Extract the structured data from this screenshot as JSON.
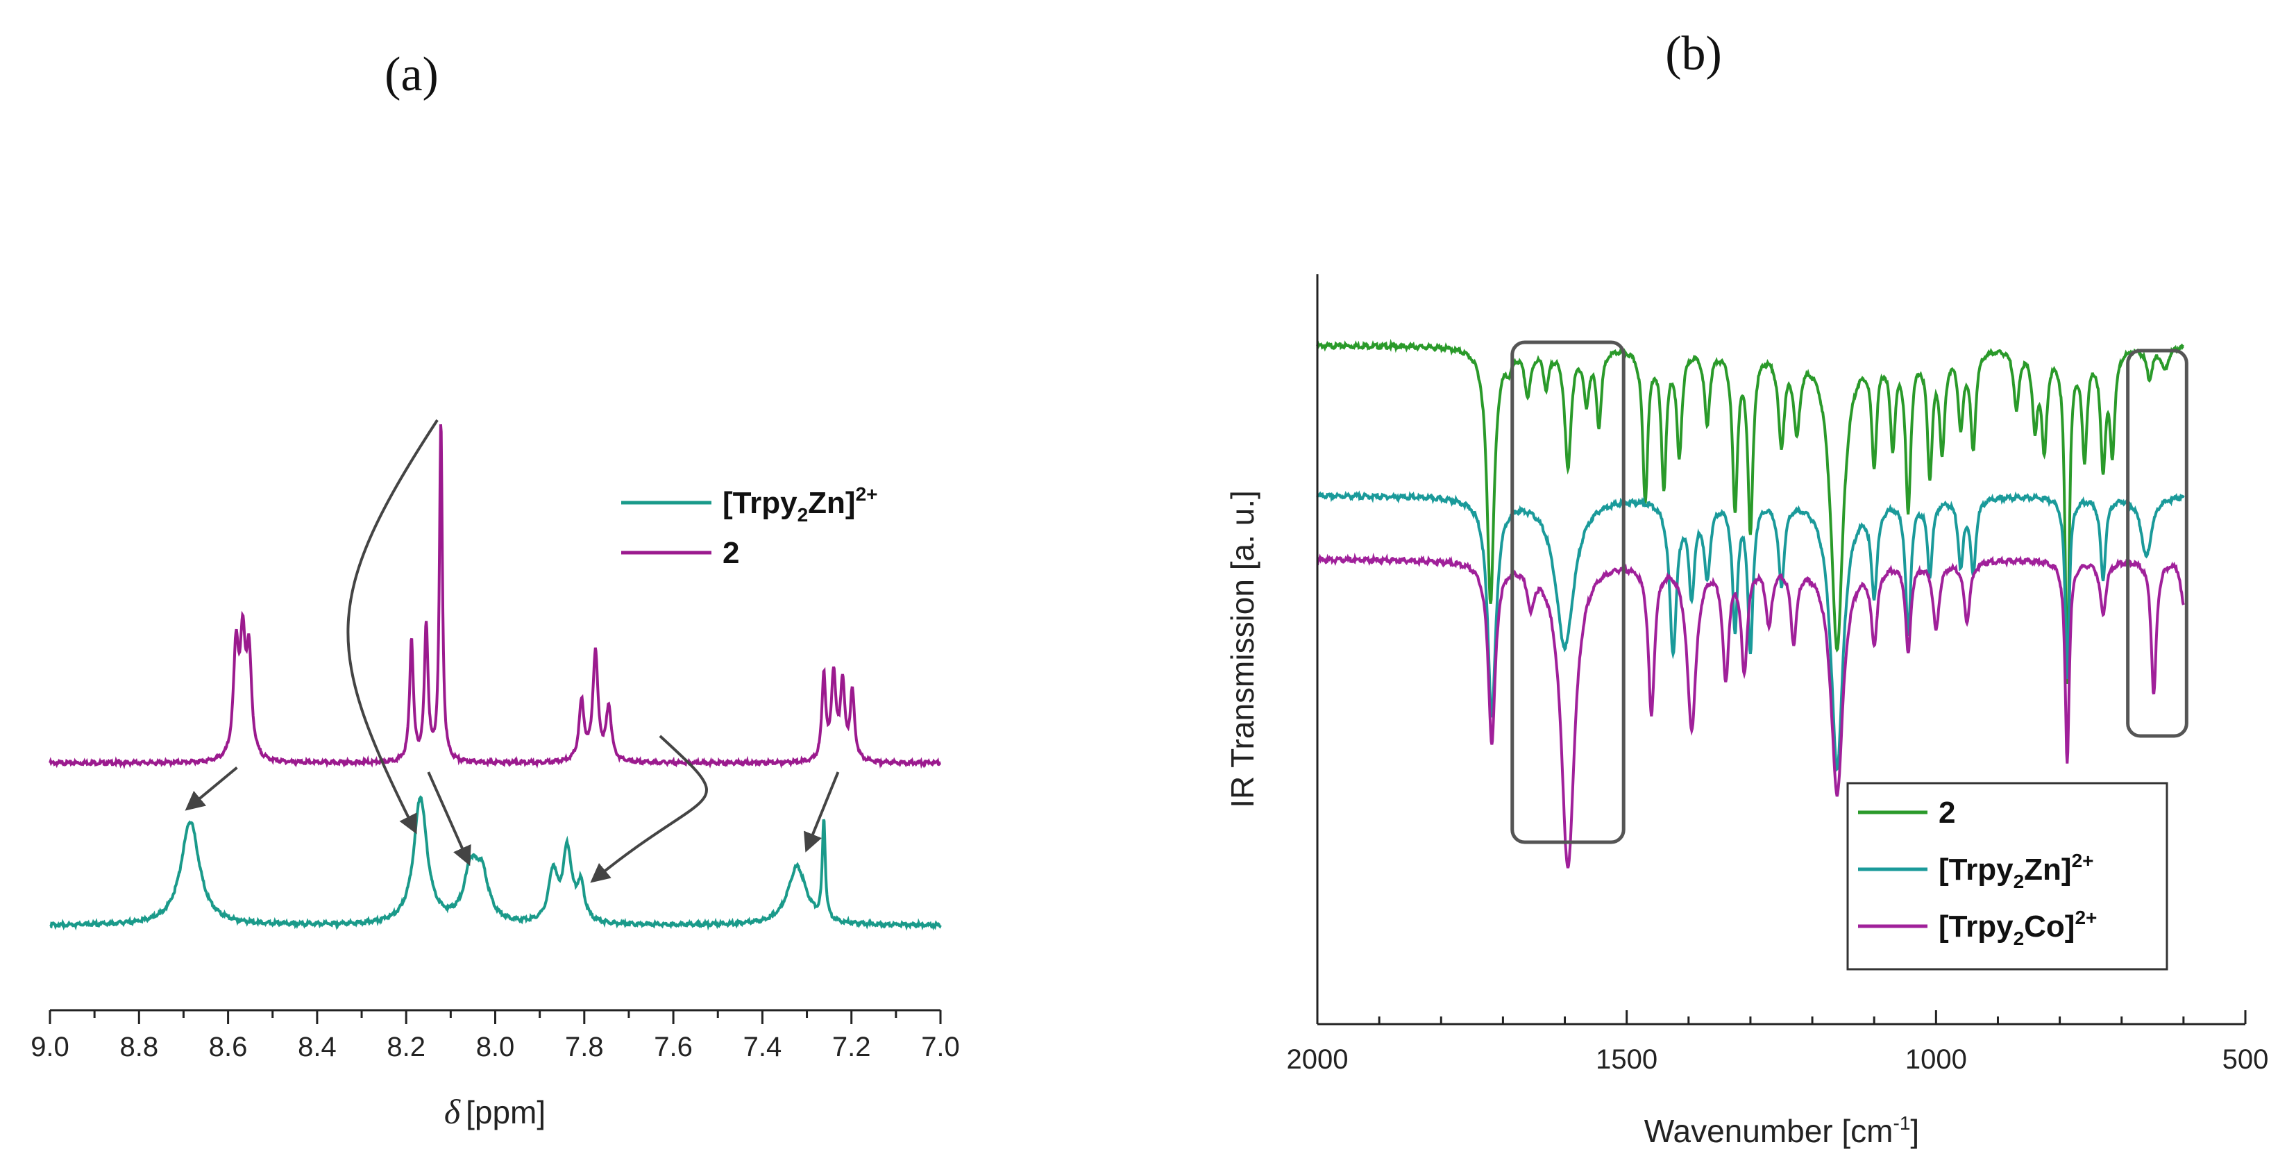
{
  "chart_data": [
    {
      "id": "nmr",
      "type": "line",
      "panel_label": "(a)",
      "xlabel_symbol": "δ",
      "xlabel_unit": "[ppm]",
      "xlim": [
        9.0,
        7.0
      ],
      "x_ticks": [
        "9.0",
        "8.8",
        "8.6",
        "8.4",
        "8.2",
        "8.0",
        "7.8",
        "7.6",
        "7.4",
        "7.2",
        "7.0"
      ],
      "legend": [
        {
          "label_main": "[Trpy",
          "label_sub": "2",
          "label_after": "Zn]",
          "label_sup": "2+",
          "color": "#1a9a8a"
        },
        {
          "label_main": "2",
          "label_sub": "",
          "label_after": "",
          "label_sup": "",
          "color": "#9b1a8e"
        }
      ],
      "series": [
        {
          "name": "2",
          "color": "#9b1a8e",
          "offset": 0.36,
          "peaks": [
            {
              "x": 8.582,
              "h": 0.24,
              "w": 0.007
            },
            {
              "x": 8.567,
              "h": 0.24,
              "w": 0.007
            },
            {
              "x": 8.553,
              "h": 0.22,
              "w": 0.007
            },
            {
              "x": 8.188,
              "h": 0.27,
              "w": 0.005
            },
            {
              "x": 8.155,
              "h": 0.3,
              "w": 0.005
            },
            {
              "x": 8.122,
              "h": 0.75,
              "w": 0.004
            },
            {
              "x": 7.806,
              "h": 0.13,
              "w": 0.007
            },
            {
              "x": 7.775,
              "h": 0.24,
              "w": 0.007
            },
            {
              "x": 7.745,
              "h": 0.12,
              "w": 0.007
            },
            {
              "x": 7.262,
              "h": 0.19,
              "w": 0.005
            },
            {
              "x": 7.24,
              "h": 0.19,
              "w": 0.006
            },
            {
              "x": 7.22,
              "h": 0.17,
              "w": 0.006
            },
            {
              "x": 7.198,
              "h": 0.15,
              "w": 0.006
            }
          ]
        },
        {
          "name": "[Trpy2Zn]2+",
          "color": "#1a9a8a",
          "offset": 0.0,
          "peaks": [
            {
              "x": 8.685,
              "h": 0.23,
              "w": 0.025
            },
            {
              "x": 8.168,
              "h": 0.28,
              "w": 0.018
            },
            {
              "x": 8.055,
              "h": 0.11,
              "w": 0.018
            },
            {
              "x": 8.03,
              "h": 0.1,
              "w": 0.018
            },
            {
              "x": 7.87,
              "h": 0.11,
              "w": 0.012
            },
            {
              "x": 7.838,
              "h": 0.16,
              "w": 0.012
            },
            {
              "x": 7.808,
              "h": 0.08,
              "w": 0.01
            },
            {
              "x": 7.322,
              "h": 0.13,
              "w": 0.025
            },
            {
              "x": 7.262,
              "h": 0.22,
              "w": 0.004
            }
          ]
        }
      ],
      "arrows": [
        {
          "from": [
            8.58,
            0.35
          ],
          "to": [
            8.69,
            0.26
          ]
        },
        {
          "from": [
            8.13,
            1.12
          ],
          "to": [
            8.18,
            0.21
          ]
        },
        {
          "from": [
            8.15,
            0.34
          ],
          "to": [
            8.06,
            0.14
          ]
        },
        {
          "from": [
            7.63,
            0.42
          ],
          "to": [
            7.78,
            0.1
          ]
        },
        {
          "from": [
            7.23,
            0.34
          ],
          "to": [
            7.3,
            0.17
          ]
        }
      ]
    },
    {
      "id": "ir",
      "type": "line",
      "panel_label": "(b)",
      "xlabel_main": "Wavenumber [cm",
      "xlabel_sup": "-1",
      "xlabel_end": "]",
      "ylabel": "IR Transmission [a. u.]",
      "xlim": [
        2000,
        500
      ],
      "x_ticks": [
        "2000",
        "1500",
        "1000",
        "500"
      ],
      "highlight_boxes": [
        [
          1685,
          1505
        ],
        [
          690,
          595
        ]
      ],
      "legend": [
        {
          "label_main": "2",
          "label_sub": "",
          "label_after": "",
          "label_sup": "",
          "color": "#2a9a2a"
        },
        {
          "label_main": "[Trpy",
          "label_sub": "2",
          "label_after": "Zn]",
          "label_sup": "2+",
          "color": "#1a9a9a"
        },
        {
          "label_main": "[Trpy",
          "label_sub": "2",
          "label_after": "Co]",
          "label_sup": "2+",
          "color": "#a0209a"
        }
      ],
      "series": [
        {
          "name": "2",
          "color": "#2a9a2a",
          "baseline": 0.905,
          "drops": [
            {
              "x": 1720,
              "d": 0.34,
              "w": 7
            },
            {
              "x": 1690,
              "d": 0.02,
              "w": 6
            },
            {
              "x": 1660,
              "d": 0.06,
              "w": 6
            },
            {
              "x": 1630,
              "d": 0.05,
              "w": 5
            },
            {
              "x": 1595,
              "d": 0.16,
              "w": 6
            },
            {
              "x": 1565,
              "d": 0.07,
              "w": 5
            },
            {
              "x": 1545,
              "d": 0.1,
              "w": 5
            },
            {
              "x": 1470,
              "d": 0.2,
              "w": 5
            },
            {
              "x": 1440,
              "d": 0.18,
              "w": 5
            },
            {
              "x": 1415,
              "d": 0.14,
              "w": 5
            },
            {
              "x": 1370,
              "d": 0.1,
              "w": 5
            },
            {
              "x": 1325,
              "d": 0.21,
              "w": 5
            },
            {
              "x": 1300,
              "d": 0.24,
              "w": 5
            },
            {
              "x": 1250,
              "d": 0.12,
              "w": 6
            },
            {
              "x": 1225,
              "d": 0.1,
              "w": 6
            },
            {
              "x": 1160,
              "d": 0.4,
              "w": 12
            },
            {
              "x": 1100,
              "d": 0.14,
              "w": 5
            },
            {
              "x": 1070,
              "d": 0.12,
              "w": 5
            },
            {
              "x": 1045,
              "d": 0.21,
              "w": 5
            },
            {
              "x": 1010,
              "d": 0.16,
              "w": 5
            },
            {
              "x": 990,
              "d": 0.13,
              "w": 5
            },
            {
              "x": 960,
              "d": 0.1,
              "w": 5
            },
            {
              "x": 940,
              "d": 0.13,
              "w": 5
            },
            {
              "x": 870,
              "d": 0.08,
              "w": 5
            },
            {
              "x": 840,
              "d": 0.1,
              "w": 5
            },
            {
              "x": 825,
              "d": 0.13,
              "w": 5
            },
            {
              "x": 788,
              "d": 0.44,
              "w": 4
            },
            {
              "x": 760,
              "d": 0.14,
              "w": 5
            },
            {
              "x": 730,
              "d": 0.15,
              "w": 5
            },
            {
              "x": 715,
              "d": 0.13,
              "w": 5
            },
            {
              "x": 655,
              "d": 0.04,
              "w": 6
            },
            {
              "x": 630,
              "d": 0.03,
              "w": 6
            }
          ]
        },
        {
          "name": "[Trpy2Zn]2+",
          "color": "#1a9a9a",
          "baseline": 0.705,
          "drops": [
            {
              "x": 1718,
              "d": 0.29,
              "w": 8
            },
            {
              "x": 1600,
              "d": 0.2,
              "w": 18
            },
            {
              "x": 1425,
              "d": 0.2,
              "w": 7
            },
            {
              "x": 1395,
              "d": 0.12,
              "w": 6
            },
            {
              "x": 1370,
              "d": 0.1,
              "w": 6
            },
            {
              "x": 1325,
              "d": 0.17,
              "w": 5
            },
            {
              "x": 1300,
              "d": 0.2,
              "w": 5
            },
            {
              "x": 1250,
              "d": 0.11,
              "w": 6
            },
            {
              "x": 1160,
              "d": 0.36,
              "w": 12
            },
            {
              "x": 1100,
              "d": 0.12,
              "w": 6
            },
            {
              "x": 1045,
              "d": 0.18,
              "w": 5
            },
            {
              "x": 1010,
              "d": 0.1,
              "w": 5
            },
            {
              "x": 960,
              "d": 0.09,
              "w": 5
            },
            {
              "x": 940,
              "d": 0.1,
              "w": 5
            },
            {
              "x": 788,
              "d": 0.24,
              "w": 4
            },
            {
              "x": 730,
              "d": 0.11,
              "w": 5
            },
            {
              "x": 660,
              "d": 0.08,
              "w": 10
            }
          ]
        },
        {
          "name": "[Trpy2Co]2+",
          "color": "#a0209a",
          "baseline": 0.62,
          "drops": [
            {
              "x": 1718,
              "d": 0.24,
              "w": 7
            },
            {
              "x": 1655,
              "d": 0.05,
              "w": 6
            },
            {
              "x": 1595,
              "d": 0.41,
              "w": 13
            },
            {
              "x": 1460,
              "d": 0.2,
              "w": 6
            },
            {
              "x": 1395,
              "d": 0.22,
              "w": 9
            },
            {
              "x": 1340,
              "d": 0.15,
              "w": 6
            },
            {
              "x": 1310,
              "d": 0.14,
              "w": 6
            },
            {
              "x": 1270,
              "d": 0.08,
              "w": 6
            },
            {
              "x": 1230,
              "d": 0.1,
              "w": 6
            },
            {
              "x": 1160,
              "d": 0.31,
              "w": 12
            },
            {
              "x": 1100,
              "d": 0.1,
              "w": 6
            },
            {
              "x": 1045,
              "d": 0.12,
              "w": 5
            },
            {
              "x": 1000,
              "d": 0.09,
              "w": 6
            },
            {
              "x": 950,
              "d": 0.08,
              "w": 6
            },
            {
              "x": 788,
              "d": 0.27,
              "w": 4
            },
            {
              "x": 730,
              "d": 0.07,
              "w": 6
            },
            {
              "x": 648,
              "d": 0.18,
              "w": 5
            },
            {
              "x": 600,
              "d": 0.06,
              "w": 5
            }
          ]
        }
      ]
    }
  ]
}
